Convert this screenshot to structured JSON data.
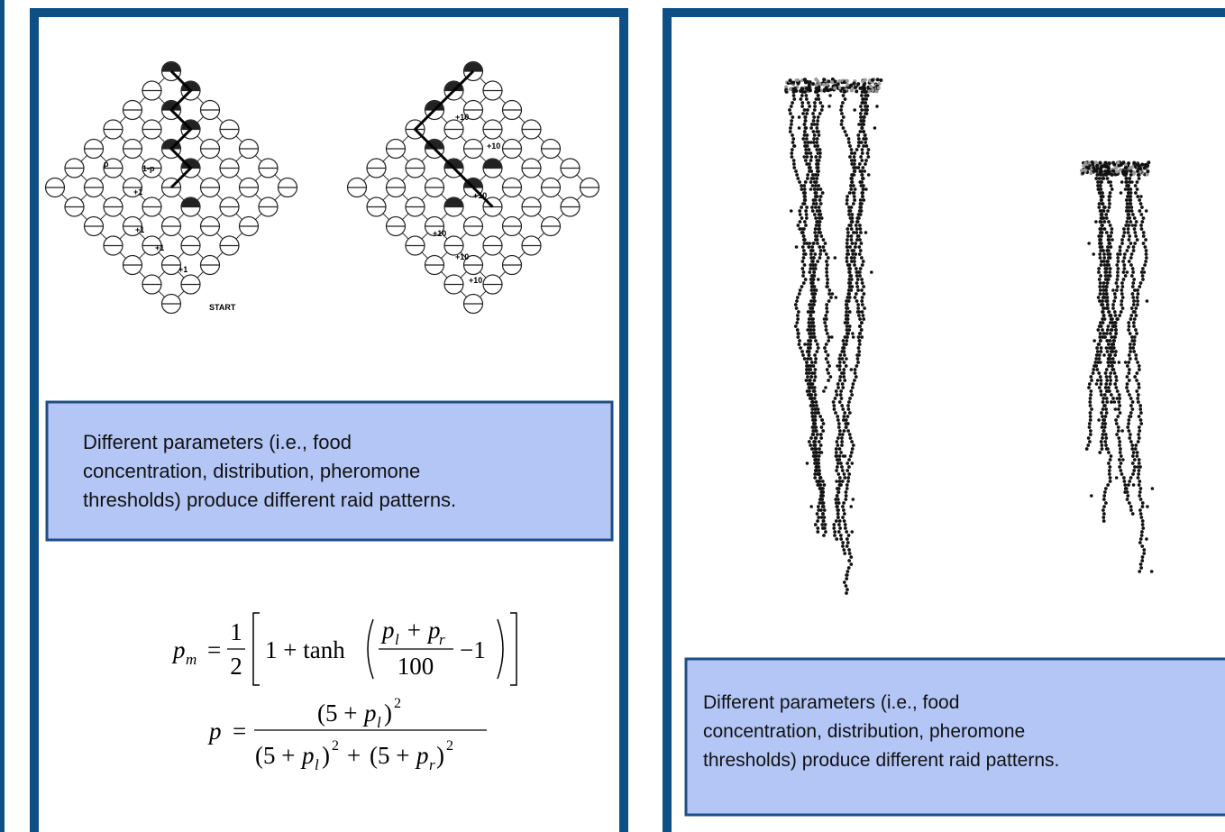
{
  "left_panel": {
    "diagram_labels": {
      "left": [
        "p",
        "1-p",
        "+1",
        "+1",
        "+1",
        "+1",
        "START"
      ],
      "right": [
        "+10",
        "+10",
        "+10",
        "+10",
        "+10",
        "+10"
      ]
    },
    "caption": [
      "Different parameters (i.e., food",
      "concentration, distribution, pheromone",
      "thresholds) produce different raid patterns."
    ],
    "equation_1": {
      "lhs": "p",
      "lhs_sub": "m",
      "equals": "=",
      "half_num": "1",
      "half_den": "2",
      "body": "1 + tanh",
      "frac_num": [
        "p",
        "l",
        "+ p",
        "r"
      ],
      "frac_den": "100",
      "tail": "−1"
    },
    "equation_2": {
      "lhs": "p",
      "equals": "=",
      "num": [
        "(5 + ",
        "p",
        "l",
        ")",
        "2"
      ],
      "den": [
        "(5 + ",
        "p",
        "l",
        ")",
        "2",
        "+",
        "(5 + ",
        "p",
        "r",
        ")",
        "2"
      ]
    }
  },
  "right_panel": {
    "caption": [
      "Different parameters (i.e., food",
      "concentration, distribution, pheromone",
      "thresholds) produce different raid patterns."
    ]
  }
}
